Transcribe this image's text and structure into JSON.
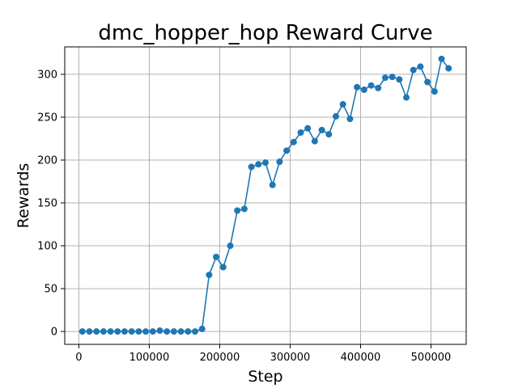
{
  "chart_data": {
    "type": "line",
    "title": "dmc_hopper_hop Reward Curve",
    "xlabel": "Step",
    "ylabel": "Rewards",
    "xlim": [
      -20000,
      550000
    ],
    "ylim": [
      -15,
      332
    ],
    "xticks": [
      0,
      100000,
      200000,
      300000,
      400000,
      500000
    ],
    "yticks": [
      0,
      50,
      100,
      150,
      200,
      250,
      300
    ],
    "grid": true,
    "color": "#1f77b4",
    "marker": "circle",
    "series": [
      {
        "x": [
          5000,
          15000,
          25000,
          35000,
          45000,
          55000,
          65000,
          75000,
          85000,
          95000,
          105000,
          115000,
          125000,
          135000,
          145000,
          155000,
          165000,
          175000,
          185000,
          195000,
          205000,
          215000,
          225000,
          235000,
          245000,
          255000,
          265000,
          275000,
          285000,
          295000,
          305000,
          315000,
          325000,
          335000,
          345000,
          355000,
          365000,
          375000,
          385000,
          395000,
          405000,
          415000,
          425000,
          435000,
          445000,
          455000,
          465000,
          475000,
          485000,
          495000,
          505000,
          515000,
          525000
        ],
        "y": [
          0,
          0,
          0,
          0,
          0,
          0,
          0,
          0,
          0,
          0,
          0,
          1,
          0,
          0,
          0,
          0,
          0,
          3,
          66,
          87,
          75,
          100,
          141,
          143,
          192,
          195,
          197,
          171,
          198,
          211,
          221,
          232,
          237,
          222,
          235,
          230,
          251,
          265,
          248,
          285,
          282,
          287,
          284,
          296,
          297,
          294,
          273,
          305,
          309,
          291,
          280,
          318,
          307
        ]
      }
    ]
  }
}
